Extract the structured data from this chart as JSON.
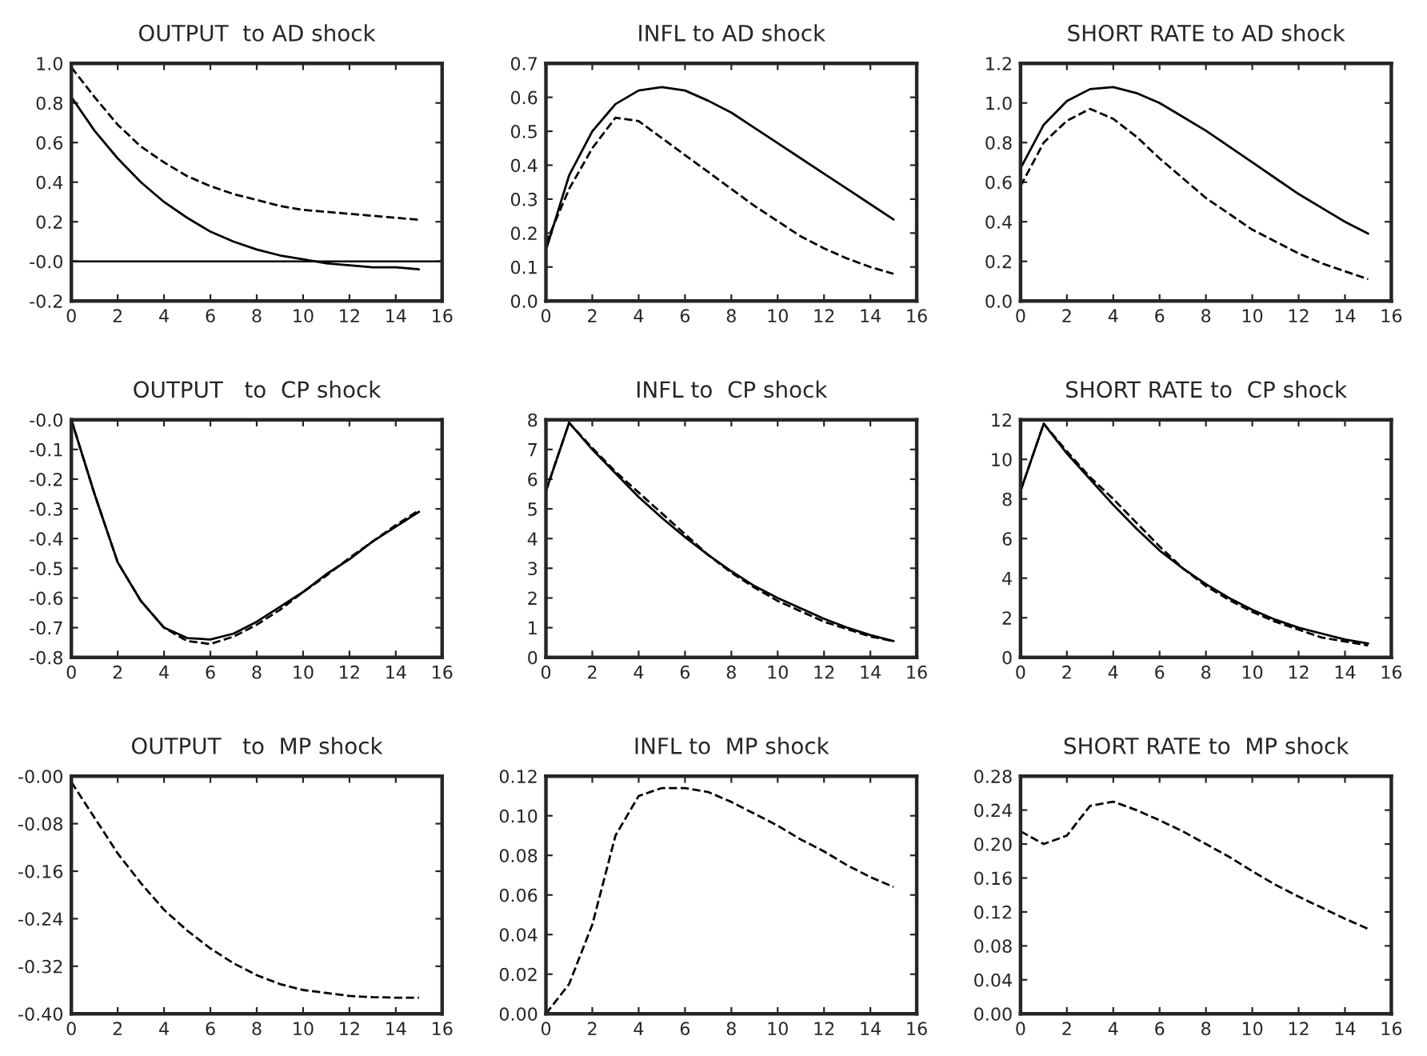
{
  "chart_data": [
    {
      "type": "line",
      "title": "OUTPUT  to AD shock",
      "x": [
        0,
        1,
        2,
        3,
        4,
        5,
        6,
        7,
        8,
        9,
        10,
        11,
        12,
        13,
        14,
        15
      ],
      "xlim": [
        0,
        16
      ],
      "xticks": [
        0,
        2,
        4,
        6,
        8,
        10,
        12,
        14,
        16
      ],
      "ylim": [
        -0.2,
        1.0
      ],
      "yticks": [
        -0.2,
        {
          "value": 0,
          "label": "-0.0"
        },
        0.2,
        0.4,
        0.6,
        0.8,
        {
          "value": 1,
          "label": "1.0"
        }
      ],
      "ref_lines": [
        {
          "axis": "y",
          "value": 0,
          "color": "#000000",
          "line_style": "solid"
        }
      ],
      "series": [
        {
          "color": "#000000",
          "line_style": "solid",
          "values": [
            0.83,
            0.66,
            0.52,
            0.4,
            0.3,
            0.22,
            0.15,
            0.1,
            0.06,
            0.03,
            0.01,
            -0.01,
            -0.02,
            -0.03,
            -0.03,
            -0.04
          ]
        },
        {
          "color": "#000000",
          "line_style": "dashed",
          "values": [
            0.98,
            0.83,
            0.69,
            0.58,
            0.5,
            0.43,
            0.38,
            0.34,
            0.31,
            0.28,
            0.26,
            0.25,
            0.24,
            0.23,
            0.22,
            0.21
          ]
        }
      ]
    },
    {
      "type": "line",
      "title": "INFL to AD shock",
      "x": [
        0,
        1,
        2,
        3,
        4,
        5,
        6,
        7,
        8,
        9,
        10,
        11,
        12,
        13,
        14,
        15
      ],
      "xlim": [
        0,
        16
      ],
      "xticks": [
        0,
        2,
        4,
        6,
        8,
        10,
        12,
        14,
        16
      ],
      "ylim": [
        0.0,
        0.7
      ],
      "yticks": [
        {
          "value": 0,
          "label": "0.0"
        },
        0.1,
        0.2,
        0.3,
        0.4,
        0.5,
        0.6,
        0.7
      ],
      "series": [
        {
          "color": "#000000",
          "line_style": "solid",
          "values": [
            0.15,
            0.37,
            0.5,
            0.58,
            0.62,
            0.63,
            0.62,
            0.59,
            0.555,
            0.51,
            0.465,
            0.42,
            0.375,
            0.33,
            0.285,
            0.24
          ]
        },
        {
          "color": "#000000",
          "line_style": "dashed",
          "values": [
            0.17,
            0.33,
            0.45,
            0.54,
            0.53,
            0.48,
            0.43,
            0.38,
            0.33,
            0.28,
            0.235,
            0.19,
            0.155,
            0.125,
            0.1,
            0.08
          ]
        }
      ]
    },
    {
      "type": "line",
      "title": "SHORT RATE to AD shock",
      "x": [
        0,
        1,
        2,
        3,
        4,
        5,
        6,
        7,
        8,
        9,
        10,
        11,
        12,
        13,
        14,
        15
      ],
      "xlim": [
        0,
        16
      ],
      "xticks": [
        0,
        2,
        4,
        6,
        8,
        10,
        12,
        14,
        16
      ],
      "ylim": [
        0.0,
        1.2
      ],
      "yticks": [
        {
          "value": 0,
          "label": "0.0"
        },
        0.2,
        0.4,
        0.6,
        0.8,
        {
          "value": 1,
          "label": "1.0"
        },
        1.2
      ],
      "series": [
        {
          "color": "#000000",
          "line_style": "solid",
          "values": [
            0.67,
            0.89,
            1.01,
            1.07,
            1.08,
            1.05,
            1.0,
            0.93,
            0.86,
            0.78,
            0.7,
            0.62,
            0.54,
            0.47,
            0.4,
            0.34
          ]
        },
        {
          "color": "#000000",
          "line_style": "dashed",
          "values": [
            0.58,
            0.8,
            0.91,
            0.97,
            0.92,
            0.83,
            0.72,
            0.62,
            0.52,
            0.44,
            0.36,
            0.3,
            0.24,
            0.19,
            0.15,
            0.11
          ]
        }
      ]
    },
    {
      "type": "line",
      "title": "OUTPUT   to  CP shock",
      "x": [
        0,
        1,
        2,
        3,
        4,
        5,
        6,
        7,
        8,
        9,
        10,
        11,
        12,
        13,
        14,
        15
      ],
      "xlim": [
        0,
        16
      ],
      "xticks": [
        0,
        2,
        4,
        6,
        8,
        10,
        12,
        14,
        16
      ],
      "ylim": [
        -0.8,
        0.0
      ],
      "yticks": [
        -0.8,
        -0.7,
        -0.6,
        -0.5,
        -0.4,
        -0.3,
        -0.2,
        -0.1,
        {
          "value": 0,
          "label": "-0.0"
        }
      ],
      "series": [
        {
          "color": "#000000",
          "line_style": "solid",
          "values": [
            0,
            -0.25,
            -0.48,
            -0.61,
            -0.7,
            -0.735,
            -0.74,
            -0.72,
            -0.68,
            -0.63,
            -0.58,
            -0.52,
            -0.47,
            -0.41,
            -0.36,
            -0.31
          ]
        },
        {
          "color": "#000000",
          "line_style": "dashed",
          "values": [
            0,
            -0.25,
            -0.48,
            -0.61,
            -0.7,
            -0.745,
            -0.755,
            -0.73,
            -0.69,
            -0.64,
            -0.58,
            -0.525,
            -0.465,
            -0.41,
            -0.355,
            -0.305
          ]
        }
      ]
    },
    {
      "type": "line",
      "title": "INFL to  CP shock",
      "x": [
        0,
        1,
        2,
        3,
        4,
        5,
        6,
        7,
        8,
        9,
        10,
        11,
        12,
        13,
        14,
        15
      ],
      "xlim": [
        0,
        16
      ],
      "xticks": [
        0,
        2,
        4,
        6,
        8,
        10,
        12,
        14,
        16
      ],
      "ylim": [
        0,
        8
      ],
      "yticks": [
        0,
        1,
        2,
        3,
        4,
        5,
        6,
        7,
        8
      ],
      "series": [
        {
          "color": "#000000",
          "line_style": "solid",
          "values": [
            5.6,
            7.9,
            7.0,
            6.2,
            5.4,
            4.7,
            4.05,
            3.45,
            2.9,
            2.4,
            2.0,
            1.65,
            1.3,
            1.0,
            0.75,
            0.55
          ]
        },
        {
          "color": "#000000",
          "line_style": "dashed",
          "values": [
            5.6,
            7.9,
            7.05,
            6.25,
            5.55,
            4.85,
            4.15,
            3.45,
            2.85,
            2.35,
            1.9,
            1.55,
            1.2,
            0.95,
            0.7,
            0.55
          ]
        }
      ]
    },
    {
      "type": "line",
      "title": "SHORT RATE to  CP shock",
      "x": [
        0,
        1,
        2,
        3,
        4,
        5,
        6,
        7,
        8,
        9,
        10,
        11,
        12,
        13,
        14,
        15
      ],
      "xlim": [
        0,
        16
      ],
      "xticks": [
        0,
        2,
        4,
        6,
        8,
        10,
        12,
        14,
        16
      ],
      "ylim": [
        0,
        12
      ],
      "yticks": [
        0,
        2,
        4,
        6,
        8,
        10,
        12
      ],
      "series": [
        {
          "color": "#000000",
          "line_style": "solid",
          "values": [
            8.4,
            11.8,
            10.3,
            9.0,
            7.7,
            6.5,
            5.4,
            4.5,
            3.7,
            3.0,
            2.4,
            1.9,
            1.5,
            1.2,
            0.9,
            0.7
          ]
        },
        {
          "color": "#000000",
          "line_style": "dashed",
          "values": [
            8.4,
            11.8,
            10.4,
            9.1,
            8.0,
            6.8,
            5.6,
            4.5,
            3.6,
            2.9,
            2.3,
            1.8,
            1.4,
            1.0,
            0.8,
            0.6
          ]
        }
      ]
    },
    {
      "type": "line",
      "title": "OUTPUT   to  MP shock",
      "x": [
        0,
        1,
        2,
        3,
        4,
        5,
        6,
        7,
        8,
        9,
        10,
        11,
        12,
        13,
        14,
        15
      ],
      "xlim": [
        0,
        16
      ],
      "xticks": [
        0,
        2,
        4,
        6,
        8,
        10,
        12,
        14,
        16
      ],
      "ylim": [
        -0.4,
        0.0
      ],
      "yticks": [
        {
          "value": -0.4,
          "label": "-0.40"
        },
        {
          "value": -0.32,
          "label": "-0.32"
        },
        {
          "value": -0.24,
          "label": "-0.24"
        },
        {
          "value": -0.16,
          "label": "-0.16"
        },
        {
          "value": -0.08,
          "label": "-0.08"
        },
        {
          "value": 0,
          "label": "-0.00"
        }
      ],
      "series": [
        {
          "color": "#000000",
          "line_style": "dashed",
          "values": [
            -0.01,
            -0.07,
            -0.13,
            -0.18,
            -0.225,
            -0.26,
            -0.29,
            -0.315,
            -0.335,
            -0.35,
            -0.36,
            -0.365,
            -0.37,
            -0.372,
            -0.373,
            -0.373
          ]
        }
      ]
    },
    {
      "type": "line",
      "title": "INFL to  MP shock",
      "x": [
        0,
        1,
        2,
        3,
        4,
        5,
        6,
        7,
        8,
        9,
        10,
        11,
        12,
        13,
        14,
        15
      ],
      "xlim": [
        0,
        16
      ],
      "xticks": [
        0,
        2,
        4,
        6,
        8,
        10,
        12,
        14,
        16
      ],
      "ylim": [
        0.0,
        0.12
      ],
      "yticks": [
        {
          "value": 0,
          "label": "0.00"
        },
        {
          "value": 0.02,
          "label": "0.02"
        },
        {
          "value": 0.04,
          "label": "0.04"
        },
        {
          "value": 0.06,
          "label": "0.06"
        },
        {
          "value": 0.08,
          "label": "0.08"
        },
        {
          "value": 0.1,
          "label": "0.10"
        },
        {
          "value": 0.12,
          "label": "0.12"
        }
      ],
      "series": [
        {
          "color": "#000000",
          "line_style": "dashed",
          "values": [
            0.0,
            0.015,
            0.045,
            0.09,
            0.11,
            0.114,
            0.114,
            0.112,
            0.107,
            0.101,
            0.095,
            0.088,
            0.082,
            0.075,
            0.069,
            0.064
          ]
        }
      ]
    },
    {
      "type": "line",
      "title": "SHORT RATE to  MP shock",
      "x": [
        0,
        1,
        2,
        3,
        4,
        5,
        6,
        7,
        8,
        9,
        10,
        11,
        12,
        13,
        14,
        15
      ],
      "xlim": [
        0,
        16
      ],
      "xticks": [
        0,
        2,
        4,
        6,
        8,
        10,
        12,
        14,
        16
      ],
      "ylim": [
        0.0,
        0.28
      ],
      "yticks": [
        {
          "value": 0,
          "label": "0.00"
        },
        {
          "value": 0.04,
          "label": "0.04"
        },
        {
          "value": 0.08,
          "label": "0.08"
        },
        {
          "value": 0.12,
          "label": "0.12"
        },
        {
          "value": 0.16,
          "label": "0.16"
        },
        {
          "value": 0.2,
          "label": "0.20"
        },
        {
          "value": 0.24,
          "label": "0.24"
        },
        {
          "value": 0.28,
          "label": "0.28"
        }
      ],
      "series": [
        {
          "color": "#000000",
          "line_style": "dashed",
          "values": [
            0.215,
            0.2,
            0.21,
            0.245,
            0.25,
            0.24,
            0.228,
            0.215,
            0.2,
            0.185,
            0.168,
            0.152,
            0.138,
            0.125,
            0.112,
            0.1
          ]
        }
      ]
    }
  ]
}
